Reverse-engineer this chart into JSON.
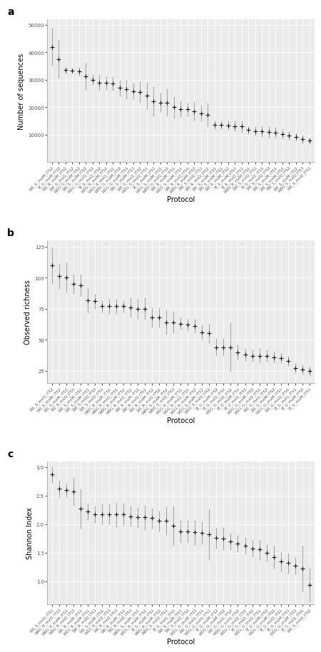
{
  "panel_a": {
    "ylabel": "Number of sequences",
    "xlabel": "Protocol",
    "ylim": [
      0,
      52000
    ],
    "yticks": [
      10000,
      20000,
      30000,
      40000,
      50000
    ],
    "means": [
      42000,
      37500,
      33500,
      33200,
      33000,
      31200,
      30000,
      29000,
      28800,
      28600,
      27000,
      26500,
      25800,
      25500,
      24200,
      22200,
      21700,
      21700,
      20000,
      19300,
      19200,
      18500,
      17800,
      17200,
      13600,
      13500,
      13300,
      13100,
      12900,
      11600,
      11200,
      11200,
      10900,
      10700,
      10200,
      9700,
      9200,
      8400,
      7700
    ],
    "errors": [
      7000,
      7000,
      1200,
      1000,
      1500,
      5000,
      2000,
      3000,
      2500,
      2500,
      3000,
      3500,
      3000,
      4000,
      5000,
      5500,
      3500,
      5000,
      4000,
      3000,
      2500,
      3500,
      3000,
      4500,
      1500,
      1500,
      1700,
      2000,
      2200,
      1400,
      1800,
      2000,
      2200,
      2000,
      1800,
      1500,
      1500,
      1500,
      1200
    ],
    "labels": [
      "W1_G_mxM_ITS2",
      "PJ_G_mxM_ITS2",
      "W1_R_mxM_ITS2",
      "W1_G_mxQ_ITS2",
      "W1G_G_mxM_ITS2",
      "W3_G_mxM_ITS2",
      "W1G_G_mxQ_ITS2",
      "PJ_G_mxQ_ITS2",
      "W1G_R_mxM_ITS2",
      "W1G_R_mxQ_ITS2",
      "W3O_G_mxM_ITS2",
      "W1G_G_mxM_ITS1",
      "W1_G_mxM_ITS1",
      "W3_G_mxQ_ITS2",
      "W1G_G_mxQ_ITS1",
      "PJ_G_mxM_ITS1",
      "W1G_S_mxM_ITS1",
      "W3O_G_mxQ_ITS2",
      "W1_R_mxM_ITS1",
      "W3O_S_mxM_ITS1",
      "W1_R_mxQ_ITS1",
      "W3O_R_mxM_ITS2",
      "W1_S_mxQ_ITS1",
      "W3_R_mxQ_ITS2",
      "W1_S_mxM_ITS2",
      "W1_S_mxM_ITS1",
      "W3_R_mxM_ITS2",
      "PJ_S_mxM_ITS1",
      "PJ_R_mxQ_ITS1",
      "W3O_R_mxM_ITS1",
      "W3_S_mxQ_ITS1",
      "PJ_G_mxQ_ITS1",
      "W1_S_mxQ_ITS2",
      "W1_S_mxM_ITS1",
      "W3_S_mxM_ITS1",
      "W3_S_mxQ_ITS2",
      "W3_S_mxM_ITS2",
      "W3O_S_mxQ_ITS1",
      "W3_S_mxQ_ITS1"
    ]
  },
  "panel_b": {
    "ylabel": "Observed richness",
    "xlabel": "Protocol",
    "ylim": [
      15,
      130
    ],
    "yticks": [
      25,
      50,
      75,
      100,
      125
    ],
    "means": [
      110,
      101,
      100,
      95,
      94,
      82,
      81,
      77,
      77,
      77,
      77,
      76,
      75,
      75,
      68,
      68,
      64,
      64,
      63,
      62,
      61,
      56,
      55,
      44,
      44,
      44,
      40,
      38,
      37,
      37,
      37,
      36,
      35,
      33,
      27,
      26,
      25
    ],
    "errors": [
      15,
      10,
      12,
      8,
      9,
      10,
      6,
      5,
      6,
      6,
      5,
      8,
      8,
      9,
      8,
      8,
      10,
      9,
      5,
      5,
      6,
      6,
      8,
      7,
      7,
      20,
      6,
      5,
      5,
      6,
      5,
      5,
      4,
      4,
      4,
      4,
      4
    ],
    "labels": [
      "W1_S_mxQ_ITS2",
      "W1_S_mxM_ITS2",
      "W1_S_mxM_ITS1",
      "W1_S_mxQ_ITS1",
      "W3_S_mxM_ITS2",
      "W3_S_mxM_ITS1",
      "W3_S_mxQ_ITS2",
      "W3_S_mxQ_ITS1",
      "W0G_R_mxM_ITS1",
      "W0G_R_mxQ_ITS1",
      "W0G_R_mxM_ITS2",
      "W0G_R_mxQ_ITS2",
      "W0_R_mxM_ITS1",
      "W0_R_mxQ_ITS1",
      "W1_R_mxM_ITS2",
      "W1_R_mxQ_ITS2",
      "W0G_S_mxM_ITS2",
      "W0G_S_mxQ_ITS1",
      "W1G_R_mxM_ITS1",
      "W1G_R_mxQ_ITS1",
      "W1G_R_mxM_ITS2",
      "W1G_S_mxM_ITS2",
      "W1G_S_mxQ_ITS2",
      "PJ_G_mxM_ITS2",
      "PJ_G_mxQ_ITS2",
      "W1G_G_mxQ_ITS2",
      "PJ_G_mxM_ITS1",
      "PJ_G_mxQ_ITS1",
      "W1G_G_mxM_ITS2",
      "W1G_G_mxQ_ITS1",
      "W1_G_mxQ_ITS2",
      "W1_G_mxM_ITS2",
      "W1G_G_mxM_ITS1",
      "W1_G_mxQ_ITS1",
      "PJ_G_mxQ_ITS1",
      "PJ_G_mxM_ITS2",
      "PJ_G_mxM_ITS1"
    ]
  },
  "panel_c": {
    "ylabel": "Shannon Index",
    "xlabel": "Protocol",
    "ylim": [
      0.6,
      3.1
    ],
    "yticks": [
      1.0,
      1.5,
      2.0,
      2.5,
      3.0
    ],
    "means": [
      2.88,
      2.62,
      2.6,
      2.58,
      2.27,
      2.22,
      2.18,
      2.18,
      2.18,
      2.17,
      2.17,
      2.14,
      2.12,
      2.12,
      2.11,
      2.06,
      2.06,
      1.98,
      1.88,
      1.88,
      1.86,
      1.85,
      1.82,
      1.76,
      1.75,
      1.7,
      1.66,
      1.63,
      1.57,
      1.56,
      1.5,
      1.42,
      1.35,
      1.32,
      1.28,
      1.22,
      0.94
    ],
    "errors": [
      0.15,
      0.15,
      0.12,
      0.25,
      0.35,
      0.15,
      0.15,
      0.18,
      0.18,
      0.22,
      0.2,
      0.18,
      0.18,
      0.22,
      0.18,
      0.18,
      0.25,
      0.35,
      0.2,
      0.2,
      0.22,
      0.2,
      0.45,
      0.18,
      0.2,
      0.15,
      0.15,
      0.15,
      0.15,
      0.18,
      0.15,
      0.2,
      0.18,
      0.18,
      0.15,
      0.4,
      0.3
    ],
    "labels": [
      "W1_S_mxQ_ITS1",
      "W0G_R_mxQ_ITS1",
      "W0G_R_mxM_ITS1",
      "W0G_R_mxQ_ITS2",
      "W1_R_mxM_ITS1",
      "W1G_R_mxM_ITS1",
      "W0_R_mxQ_ITS1",
      "W1_S_mxM_ITS1",
      "W1G_R_mxQ_ITS1",
      "W3_R_mxQ_ITS1",
      "W0_R_mxM_ITS1",
      "W1_R_mxQ_ITS1",
      "W0G_S_mxM_ITS1",
      "W1G_R_mxM_ITS2",
      "PJ_G_mxM_ITS1",
      "W0G_R_mxM_ITS2",
      "W0G_S_mxQ_ITS1",
      "PJ_G_mxQ_ITS1",
      "W3_R_mxM_ITS1",
      "W1_S_mxQ_ITS2",
      "W1G_G_mxM_ITS1",
      "W3_G_mxQ_ITS1",
      "W1G_G_mxQ_ITS1",
      "PJ_G_mxM_ITS2",
      "W1G_G_mxM_ITS2",
      "W3_G_mxQ_ITS2",
      "W3O_G_mxQ_ITS2",
      "W1G_G_mxQ_ITS2",
      "PJ_G_mxQ_ITS2",
      "W1G_G_mxQ_ITS1",
      "PJ_G_mxM_ITS2",
      "W1G_G_mxM_ITS2",
      "PJ_G_mxQ_ITS1",
      "PJ_G_mxM_ITS1",
      "W1G_G_mxM_ITS1",
      "PJ_G_mxQ_ITS1",
      "W3_S_mxQ_ITS2"
    ]
  },
  "bg_color": "#ebebeb",
  "grid_color": "#ffffff",
  "marker_color": "#1a1a1a",
  "error_color": "#aaaaaa",
  "marker_size": 4,
  "panel_label_fontsize": 10,
  "axis_label_fontsize": 7,
  "tick_fontsize": 5,
  "label_fontsize": 4
}
